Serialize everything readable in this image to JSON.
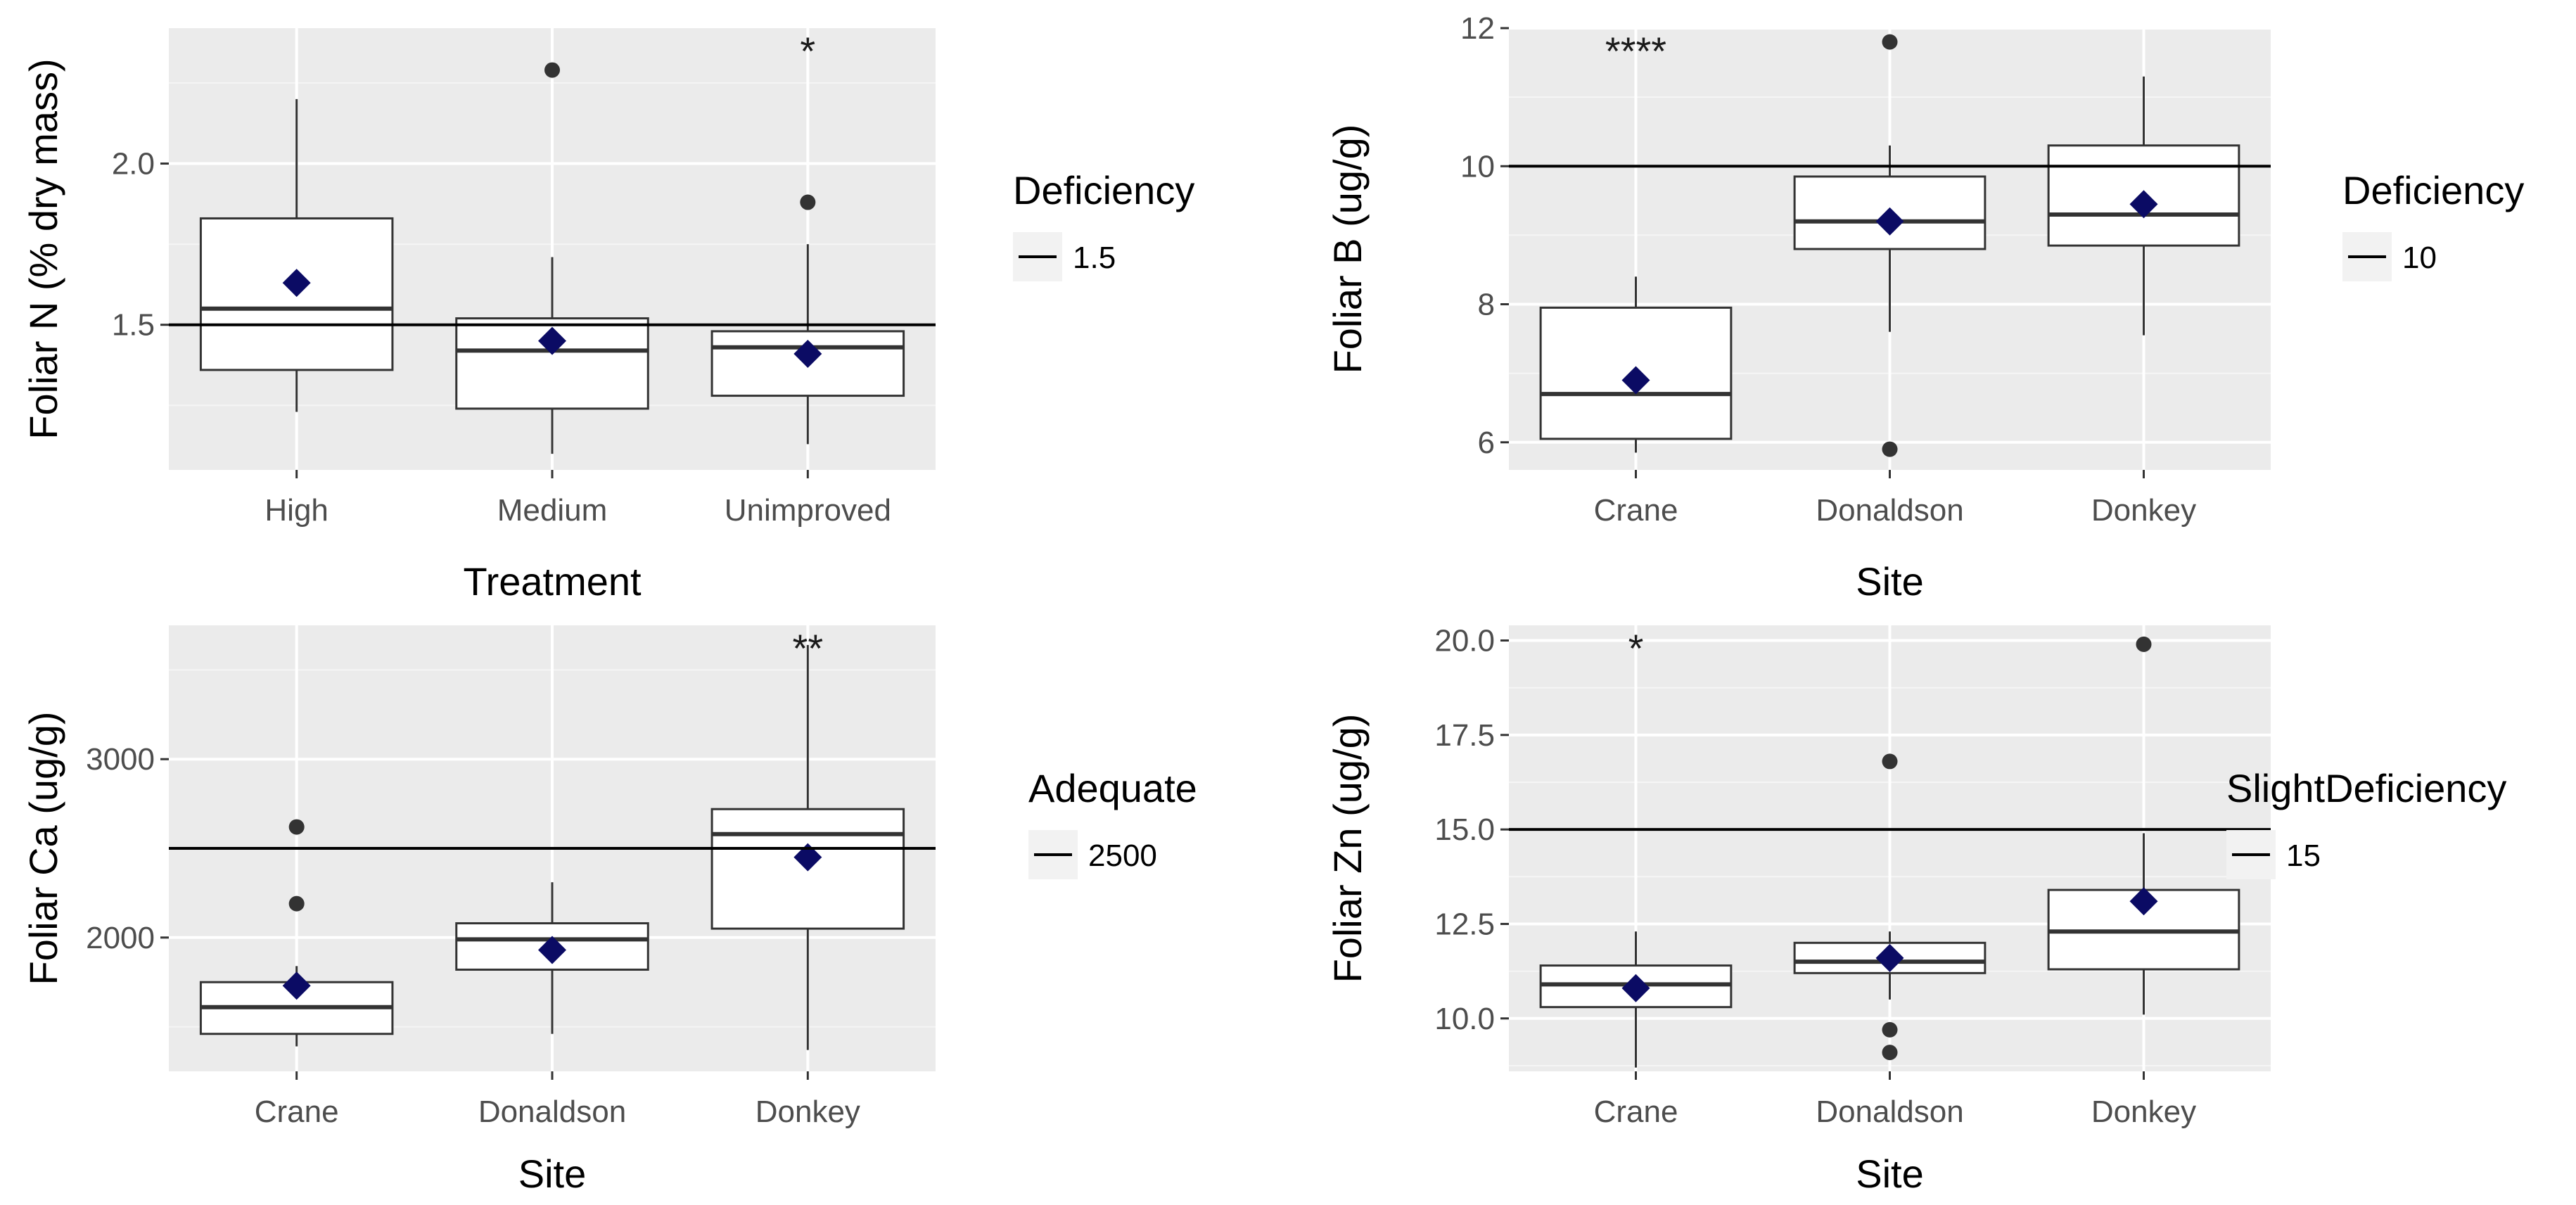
{
  "chart_data": [
    {
      "type": "boxplot",
      "title": "",
      "xlabel": "Treatment",
      "ylabel": "Foliar N (% dry mass)",
      "categories": [
        "High",
        "Medium",
        "Unimproved"
      ],
      "ylim": [
        1.05,
        2.42
      ],
      "yticks": [
        1.5,
        2.0
      ],
      "ytick_labels": [
        "1.5",
        "2.0"
      ],
      "boxes": [
        {
          "category": "High",
          "whisker_low": 1.23,
          "q1": 1.36,
          "median": 1.55,
          "q3": 1.83,
          "whisker_high": 2.2,
          "mean": 1.63,
          "outliers": [],
          "annotation": ""
        },
        {
          "category": "Medium",
          "whisker_low": 1.1,
          "q1": 1.24,
          "median": 1.42,
          "q3": 1.52,
          "whisker_high": 1.71,
          "mean": 1.45,
          "outliers": [
            2.29
          ],
          "annotation": ""
        },
        {
          "category": "Unimproved",
          "whisker_low": 1.13,
          "q1": 1.28,
          "median": 1.43,
          "q3": 1.48,
          "whisker_high": 1.75,
          "mean": 1.41,
          "outliers": [
            1.88
          ],
          "annotation": "*"
        }
      ],
      "reference_line": {
        "value": 1.5
      },
      "legend": {
        "title": "Deficiency",
        "label": "1.5"
      }
    },
    {
      "type": "boxplot",
      "title": "",
      "xlabel": "Site",
      "ylabel": "Foliar B (ug/g)",
      "categories": [
        "Crane",
        "Donaldson",
        "Donkey"
      ],
      "ylim": [
        5.6,
        12.0
      ],
      "yticks": [
        6,
        8,
        10,
        12
      ],
      "ytick_labels": [
        "6",
        "8",
        "10",
        "12"
      ],
      "boxes": [
        {
          "category": "Crane",
          "whisker_low": 5.85,
          "q1": 6.05,
          "median": 6.7,
          "q3": 7.95,
          "whisker_high": 8.4,
          "mean": 6.9,
          "outliers": [],
          "annotation": "****"
        },
        {
          "category": "Donaldson",
          "whisker_low": 7.6,
          "q1": 8.8,
          "median": 9.2,
          "q3": 9.85,
          "whisker_high": 10.3,
          "mean": 9.2,
          "outliers": [
            5.9,
            11.8
          ],
          "annotation": ""
        },
        {
          "category": "Donkey",
          "whisker_low": 7.55,
          "q1": 8.85,
          "median": 9.3,
          "q3": 10.3,
          "whisker_high": 11.3,
          "mean": 9.45,
          "outliers": [],
          "annotation": ""
        }
      ],
      "reference_line": {
        "value": 10
      },
      "legend": {
        "title": "Deficiency",
        "label": "10"
      }
    },
    {
      "type": "boxplot",
      "title": "",
      "xlabel": "Site",
      "ylabel": "Foliar Ca (ug/g)",
      "categories": [
        "Crane",
        "Donaldson",
        "Donkey"
      ],
      "ylim": [
        1250,
        3750
      ],
      "yticks": [
        2000,
        3000
      ],
      "ytick_labels": [
        "2000",
        "3000"
      ],
      "boxes": [
        {
          "category": "Crane",
          "whisker_low": 1390,
          "q1": 1460,
          "median": 1610,
          "q3": 1750,
          "whisker_high": 1840,
          "mean": 1730,
          "outliers": [
            2190,
            2620
          ],
          "annotation": ""
        },
        {
          "category": "Donaldson",
          "whisker_low": 1460,
          "q1": 1820,
          "median": 1990,
          "q3": 2080,
          "whisker_high": 2310,
          "mean": 1930,
          "outliers": [],
          "annotation": ""
        },
        {
          "category": "Donkey",
          "whisker_low": 1370,
          "q1": 2050,
          "median": 2580,
          "q3": 2720,
          "whisker_high": 3640,
          "mean": 2450,
          "outliers": [],
          "annotation": "**"
        }
      ],
      "reference_line": {
        "value": 2500
      },
      "legend": {
        "title": "Adequate",
        "label": "2500"
      }
    },
    {
      "type": "boxplot",
      "title": "",
      "xlabel": "Site",
      "ylabel": "Foliar Zn (ug/g)",
      "categories": [
        "Crane",
        "Donaldson",
        "Donkey"
      ],
      "ylim": [
        8.6,
        20.4
      ],
      "yticks": [
        10.0,
        12.5,
        15.0,
        17.5,
        20.0
      ],
      "ytick_labels": [
        "10.0",
        "12.5",
        "15.0",
        "17.5",
        "20.0"
      ],
      "boxes": [
        {
          "category": "Crane",
          "whisker_low": 8.7,
          "q1": 10.3,
          "median": 10.9,
          "q3": 11.4,
          "whisker_high": 12.3,
          "mean": 10.8,
          "outliers": [],
          "annotation": "*"
        },
        {
          "category": "Donaldson",
          "whisker_low": 10.5,
          "q1": 11.2,
          "median": 11.5,
          "q3": 12.0,
          "whisker_high": 12.3,
          "mean": 11.6,
          "outliers": [
            9.1,
            9.7,
            16.8
          ],
          "annotation": ""
        },
        {
          "category": "Donkey",
          "whisker_low": 10.1,
          "q1": 11.3,
          "median": 12.3,
          "q3": 13.4,
          "whisker_high": 14.9,
          "mean": 13.1,
          "outliers": [
            19.9
          ],
          "annotation": ""
        }
      ],
      "reference_line": {
        "value": 15
      },
      "legend": {
        "title": "SlightDeficiency",
        "label": "15"
      }
    }
  ],
  "colors": {
    "panel_background": "#ebebeb",
    "grid_major": "#ffffff",
    "grid_minor": "#f5f5f5",
    "box_fill": "#ffffff",
    "box_stroke": "#333333",
    "mean_marker": "#0b0b64",
    "outlier": "#333333",
    "reference_line": "#000000",
    "legend_key_background": "#f2f2f2"
  }
}
